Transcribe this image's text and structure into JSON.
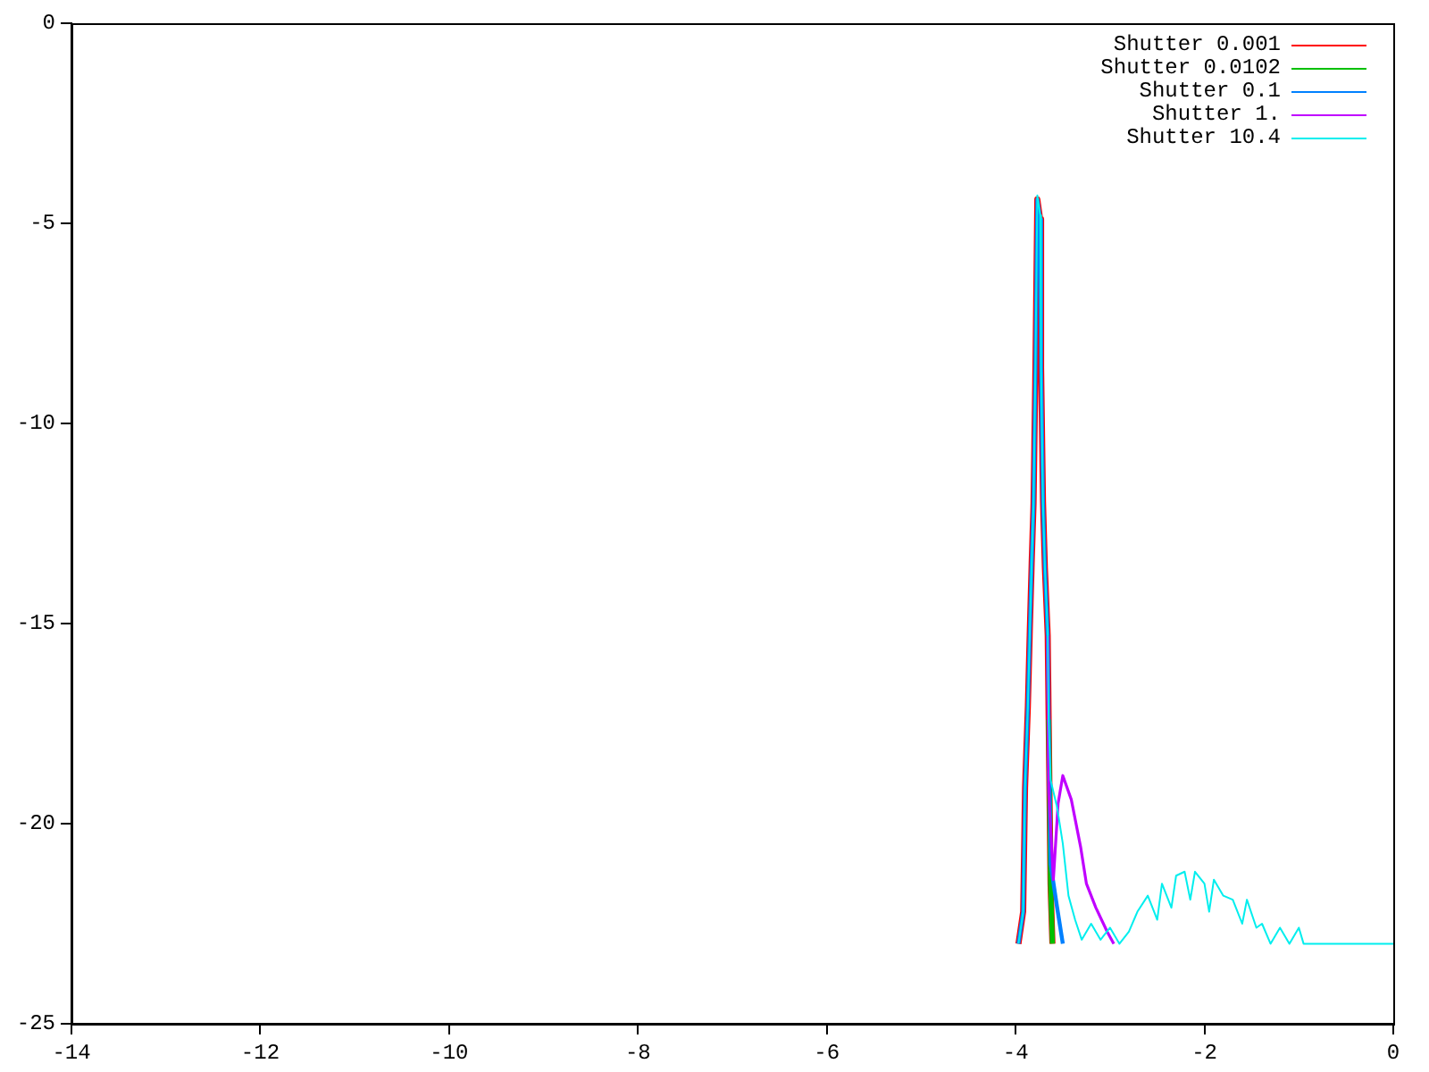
{
  "chart_data": {
    "type": "line",
    "xlim": [
      -14,
      0
    ],
    "xticks": [
      -14,
      -12,
      -10,
      -8,
      -6,
      -4,
      -2,
      0
    ],
    "ylim": [
      -25,
      0
    ],
    "yticks": [
      -25,
      -20,
      -15,
      -10,
      -5,
      0
    ],
    "grid": false,
    "legend": "top right",
    "marker": "none",
    "line_style": "solid",
    "series": [
      {
        "name": "Shutter 0.001",
        "color": "#ff0000",
        "x": [
          -3.97,
          -3.92,
          -3.9,
          -3.87,
          -3.85,
          -3.83,
          -3.81,
          -3.79,
          -3.77,
          -3.74,
          -3.73,
          -3.71,
          -3.69,
          -3.66,
          -3.65,
          -3.63,
          -3.61
        ],
        "values": [
          -23,
          -22.2,
          -19.1,
          -17.05,
          -15.2,
          -13.5,
          -12,
          -8.6,
          -4.4,
          -4.9,
          -8.6,
          -11.95,
          -13.6,
          -15.3,
          -17.4,
          -21.5,
          -23
        ]
      },
      {
        "name": "Shutter 0.0102",
        "color": "#00c000",
        "x": [
          -3.65,
          -3.63,
          -3.61
        ],
        "values": [
          -17.4,
          -21.5,
          -23
        ]
      },
      {
        "name": "Shutter 0.1",
        "color": "#0080ff",
        "x": [
          -3.97,
          -3.92,
          -3.9,
          -3.87,
          -3.85,
          -3.83,
          -3.81,
          -3.79,
          -3.77,
          -3.74,
          -3.73,
          -3.71,
          -3.69,
          -3.66,
          -3.65,
          -3.63,
          -3.56,
          -3.5
        ],
        "values": [
          -23,
          -22.2,
          -19.1,
          -17.05,
          -15.2,
          -13.5,
          -12,
          -8.6,
          -4.4,
          -4.9,
          -8.6,
          -11.95,
          -13.6,
          -15.3,
          -17.4,
          -21,
          -22.1,
          -23
        ]
      },
      {
        "name": "Shutter 1.",
        "color": "#c000ff",
        "x": [
          -3.66,
          -3.65,
          -3.6,
          -3.55,
          -3.5,
          -3.41,
          -3.31,
          -3.25,
          -3.15,
          -3.03,
          -2.96
        ],
        "values": [
          -15.3,
          -19.2,
          -21.4,
          -19.5,
          -18.8,
          -19.4,
          -20.6,
          -21.5,
          -22.1,
          -22.7,
          -23
        ]
      },
      {
        "name": "Shutter 10.4",
        "color": "#00eeee",
        "x": [
          -3.97,
          -3.92,
          -3.9,
          -3.87,
          -3.85,
          -3.83,
          -3.81,
          -3.79,
          -3.77,
          -3.74,
          -3.73,
          -3.71,
          -3.69,
          -3.66,
          -3.65,
          -3.63,
          -3.56,
          -3.5,
          -3.44,
          -3.37,
          -3.3,
          -3.2,
          -3.1,
          -3.0,
          -2.9,
          -2.8,
          -2.71,
          -2.6,
          -2.5,
          -2.45,
          -2.35,
          -2.3,
          -2.21,
          -2.15,
          -2.1,
          -2.0,
          -1.95,
          -1.9,
          -1.8,
          -1.7,
          -1.6,
          -1.55,
          -1.45,
          -1.39,
          -1.3,
          -1.2,
          -1.1,
          -1.0,
          -0.95,
          0
        ],
        "values": [
          -23,
          -22.2,
          -19.1,
          -17.05,
          -15.2,
          -13.5,
          -12,
          -8.6,
          -4.3,
          -4.8,
          -8.6,
          -11.95,
          -13.6,
          -15.3,
          -17.4,
          -18.9,
          -19.6,
          -20.5,
          -21.8,
          -22.4,
          -22.9,
          -22.5,
          -22.9,
          -22.6,
          -23,
          -22.7,
          -22.2,
          -21.8,
          -22.4,
          -21.5,
          -22.1,
          -21.3,
          -21.2,
          -21.9,
          -21.2,
          -21.5,
          -22.2,
          -21.4,
          -21.8,
          -21.9,
          -22.5,
          -21.9,
          -22.6,
          -22.5,
          -23,
          -22.6,
          -23,
          -22.6,
          -23,
          -23
        ]
      }
    ]
  }
}
